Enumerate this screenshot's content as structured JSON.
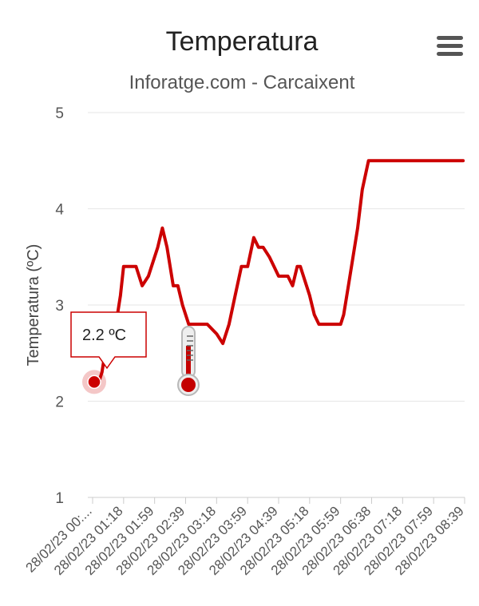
{
  "menu_icon": "hamburger-menu-icon",
  "thermometer_icon": "thermometer-icon",
  "colors": {
    "series": "#cc0000",
    "grid": "#e6e6e6",
    "tooltip_border": "#cc0000"
  },
  "tooltip": {
    "text": "2.2 ºC"
  },
  "chart_data": {
    "type": "line",
    "title": "Temperatura",
    "subtitle": "Inforatge.com - Carcaixent",
    "ylabel": "Temperatura (ºC)",
    "xlabel": "",
    "ylim": [
      1,
      5
    ],
    "yticks": [
      1,
      2,
      3,
      4,
      5
    ],
    "grid": true,
    "x_tick_labels": [
      "28/02/23 00:...",
      "28/02/23 01:18",
      "28/02/23 01:59",
      "28/02/23 02:39",
      "28/02/23 03:18",
      "28/02/23 03:59",
      "28/02/23 04:39",
      "28/02/23 05:18",
      "28/02/23 05:59",
      "28/02/23 06:38",
      "28/02/23 07:18",
      "28/02/23 07:59",
      "28/02/23 08:39"
    ],
    "series": [
      {
        "name": "",
        "x": [
          0,
          0.1,
          0.2,
          0.3,
          0.4,
          0.5,
          0.6,
          0.7,
          0.8,
          0.9,
          1.0,
          1.1,
          1.25,
          1.4,
          1.6,
          1.8,
          1.9,
          2.0,
          2.1,
          2.25,
          2.4,
          2.5,
          2.6,
          2.75,
          2.9,
          3.1,
          3.2,
          3.3,
          3.5,
          3.7,
          4.0,
          4.2,
          4.4,
          4.6,
          4.8,
          5.0,
          5.2,
          5.35,
          5.5,
          5.7,
          5.85,
          6.0,
          6.15,
          6.3,
          6.45,
          6.6,
          6.7,
          6.8,
          7.0,
          7.15,
          7.3,
          7.45,
          7.6,
          7.8,
          8.0,
          8.1,
          8.25,
          8.4,
          8.55,
          8.7,
          8.9,
          9.05,
          9.2,
          9.35,
          9.5,
          9.7,
          9.85,
          10.0,
          10.1,
          10.3,
          10.45,
          10.6,
          10.75,
          10.9,
          11.0,
          11.15,
          11.25,
          11.35,
          11.5,
          11.65,
          11.8,
          11.95,
          12.0
        ],
        "values": [
          2.2,
          2.15,
          2.2,
          2.3,
          2.5,
          2.75,
          2.9,
          2.9,
          2.9,
          3.1,
          3.4,
          3.4,
          3.4,
          3.4,
          3.2,
          3.3,
          3.4,
          3.5,
          3.6,
          3.8,
          3.6,
          3.4,
          3.2,
          3.2,
          3.0,
          2.8,
          2.8,
          2.8,
          2.8,
          2.8,
          2.7,
          2.6,
          2.8,
          3.1,
          3.4,
          3.4,
          3.7,
          3.6,
          3.6,
          3.5,
          3.4,
          3.3,
          3.3,
          3.3,
          3.2,
          3.4,
          3.4,
          3.3,
          3.1,
          2.9,
          2.8,
          2.8,
          2.8,
          2.8,
          2.8,
          2.9,
          3.2,
          3.5,
          3.8,
          4.2,
          4.5,
          4.5,
          4.5,
          4.5,
          4.5,
          4.5,
          4.5,
          4.5,
          4.5,
          4.5,
          4.5,
          4.5,
          4.5,
          4.5,
          4.5,
          4.5,
          4.5,
          4.5,
          4.5,
          4.5,
          4.5,
          4.5,
          4.5
        ]
      }
    ]
  }
}
